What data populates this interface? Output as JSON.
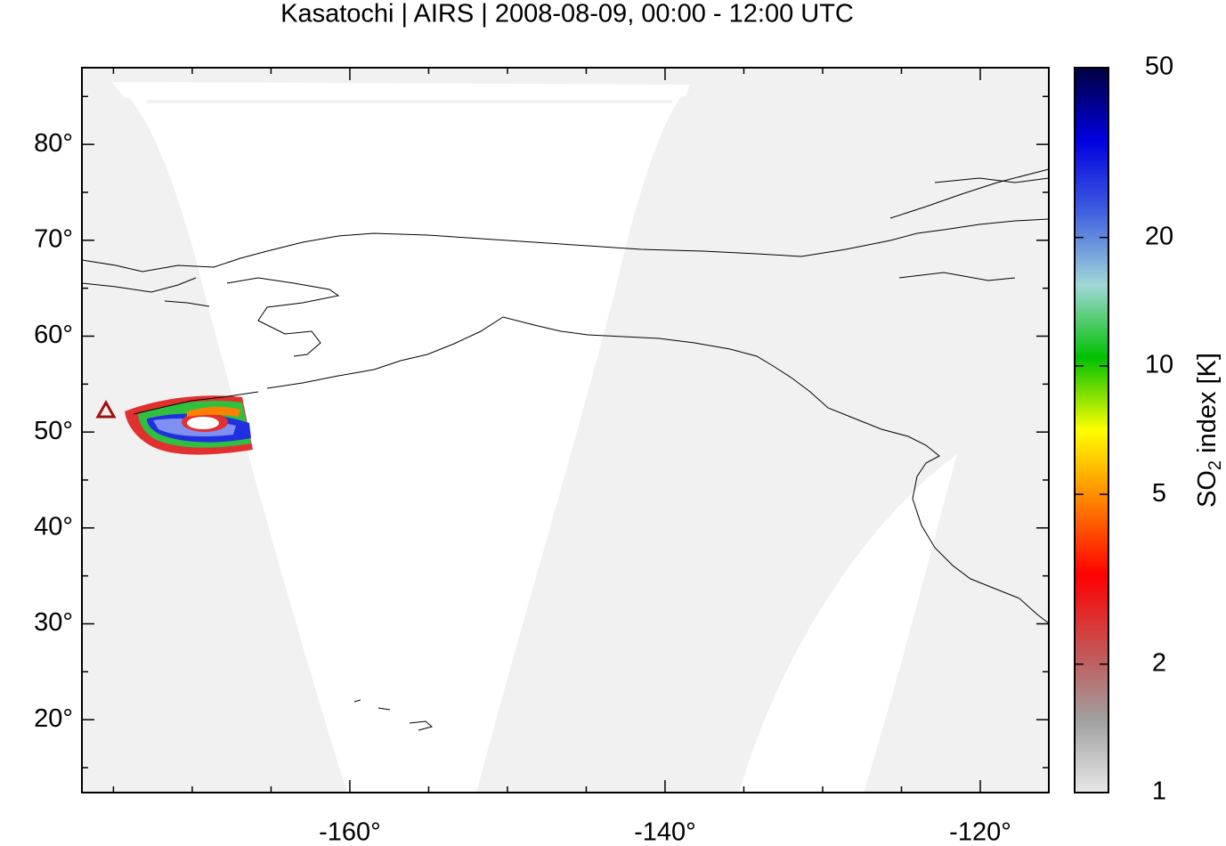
{
  "chart_data": {
    "type": "map",
    "title": "Kasatochi | AIRS | 2008-08-09, 00:00 - 12:00 UTC",
    "xlim": [
      -177,
      -115.65
    ],
    "ylim": [
      12.4,
      88
    ],
    "xticks": [
      {
        "value": -160,
        "label": "-160°"
      },
      {
        "value": -140,
        "label": "-140°"
      },
      {
        "value": -120,
        "label": "-120°"
      }
    ],
    "xticks_minor": [
      -175,
      -170,
      -165,
      -155,
      -150,
      -145,
      -135,
      -130,
      -125
    ],
    "yticks": [
      {
        "value": 20,
        "label": "20°"
      },
      {
        "value": 30,
        "label": "30°"
      },
      {
        "value": 40,
        "label": "40°"
      },
      {
        "value": 50,
        "label": "50°"
      },
      {
        "value": 60,
        "label": "60°"
      },
      {
        "value": 70,
        "label": "70°"
      },
      {
        "value": 80,
        "label": "80°"
      }
    ],
    "yticks_minor": [
      15,
      25,
      35,
      45,
      55,
      65,
      75,
      85
    ],
    "colorbar": {
      "label_main": "SO",
      "label_sub": "2",
      "label_rest": " index [K]",
      "log_scale": true,
      "clim": [
        1,
        50
      ],
      "ticks": [
        1,
        2,
        5,
        10,
        20,
        50
      ],
      "colormap": [
        "#e8e8e8",
        "#a0a0a0",
        "#c85050",
        "#ff0000",
        "#ff8000",
        "#ffff00",
        "#00c000",
        "#a0d8d8",
        "#4060e0",
        "#0000e0",
        "#000040"
      ]
    }
  }
}
